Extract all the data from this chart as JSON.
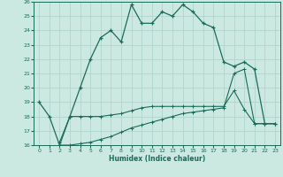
{
  "xlabel": "Humidex (Indice chaleur)",
  "xlim": [
    -0.5,
    23.5
  ],
  "ylim": [
    16,
    26
  ],
  "yticks": [
    16,
    17,
    18,
    19,
    20,
    21,
    22,
    23,
    24,
    25,
    26
  ],
  "xticks": [
    0,
    1,
    2,
    3,
    4,
    5,
    6,
    7,
    8,
    9,
    10,
    11,
    12,
    13,
    14,
    15,
    16,
    17,
    18,
    19,
    20,
    21,
    22,
    23
  ],
  "bg_color": "#cce9e1",
  "grid_color": "#b0d4cc",
  "line_color": "#1a6b5a",
  "series1_x": [
    0,
    1,
    2,
    3,
    4,
    5,
    6,
    7,
    8,
    9,
    10,
    11,
    12,
    13,
    14,
    15,
    16,
    17,
    18,
    19,
    20,
    21,
    22,
    23
  ],
  "series1_y": [
    19,
    18,
    16,
    18,
    20,
    22,
    23.5,
    24,
    23.2,
    25.8,
    24.5,
    24.5,
    25.3,
    25.0,
    25.8,
    25.3,
    24.5,
    24.2,
    21.8,
    21.5,
    21.8,
    21.3,
    17.5,
    17.5
  ],
  "series2_x": [
    2,
    3,
    4,
    5,
    6,
    7,
    8,
    9,
    10,
    11,
    12,
    13,
    14,
    15,
    16,
    17,
    18,
    19,
    20,
    21,
    22,
    23
  ],
  "series2_y": [
    16.2,
    18.0,
    18.0,
    18.0,
    18.0,
    18.1,
    18.2,
    18.4,
    18.6,
    18.7,
    18.7,
    18.7,
    18.7,
    18.7,
    18.7,
    18.7,
    18.7,
    19.8,
    18.5,
    17.5,
    17.5,
    17.5
  ],
  "series3_x": [
    2,
    3,
    4,
    5,
    6,
    7,
    8,
    9,
    10,
    11,
    12,
    13,
    14,
    15,
    16,
    17,
    18,
    19,
    20,
    21,
    22,
    23
  ],
  "series3_y": [
    16.0,
    16.0,
    16.1,
    16.2,
    16.4,
    16.6,
    16.9,
    17.2,
    17.4,
    17.6,
    17.8,
    18.0,
    18.2,
    18.3,
    18.4,
    18.5,
    18.6,
    21.0,
    21.3,
    17.5,
    17.5,
    17.5
  ]
}
